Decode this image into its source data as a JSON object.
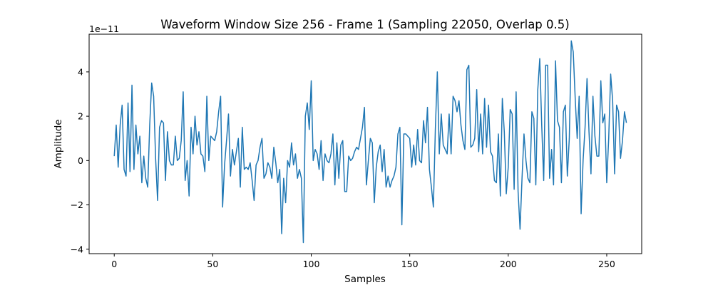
{
  "chart_data": {
    "type": "line",
    "title": "Waveform Window Size 256 - Frame 1 (Sampling 22050, Overlap 0.5)",
    "xlabel": "Samples",
    "ylabel": "Amplitude",
    "y_offset_label": "1e−11",
    "xlim": [
      -12.75,
      267.75
    ],
    "ylim": [
      -4.2,
      5.7
    ],
    "x_ticks": [
      0,
      50,
      100,
      150,
      200,
      250
    ],
    "x_tick_labels": [
      "0",
      "50",
      "100",
      "150",
      "200",
      "250"
    ],
    "y_ticks": [
      -4,
      -2,
      0,
      2,
      4
    ],
    "y_tick_labels": [
      "−4",
      "−2",
      "0",
      "2",
      "4"
    ],
    "grid": false,
    "series": [
      {
        "color": "#1f77b4",
        "values": [
          0.2,
          1.6,
          -0.3,
          1.6,
          2.5,
          -0.4,
          -0.7,
          2.6,
          -0.5,
          3.4,
          -0.4,
          1.6,
          0.3,
          1.1,
          -1.0,
          0.2,
          -0.8,
          -1.2,
          1.6,
          3.5,
          2.9,
          0.1,
          -1.8,
          1.5,
          1.8,
          1.7,
          -0.9,
          1.3,
          0.0,
          -0.2,
          -0.2,
          1.1,
          0.0,
          0.1,
          0.9,
          3.1,
          -0.9,
          0.0,
          -1.6,
          1.5,
          0.3,
          2.0,
          0.7,
          1.3,
          0.3,
          0.2,
          -0.5,
          2.9,
          0.0,
          1.1,
          1.0,
          0.9,
          1.3,
          2.2,
          2.9,
          -2.1,
          -0.2,
          0.9,
          2.1,
          -0.7,
          0.5,
          -0.2,
          0.4,
          1.0,
          -1.2,
          1.5,
          -0.4,
          -0.3,
          -0.4,
          -0.1,
          -0.9,
          -1.8,
          -0.2,
          0.0,
          0.6,
          1.0,
          -0.8,
          -0.6,
          -0.1,
          -0.3,
          -0.8,
          0.6,
          -0.1,
          -1.0,
          -0.4,
          -3.3,
          -0.8,
          -1.9,
          0.0,
          -0.3,
          0.8,
          -0.2,
          0.3,
          -0.8,
          -0.4,
          -0.8,
          -3.7,
          2.0,
          2.6,
          1.4,
          3.6,
          0.0,
          0.5,
          0.3,
          -0.4,
          0.9,
          -0.9,
          0.3,
          0.0,
          -0.1,
          0.3,
          1.2,
          -1.1,
          0.8,
          -0.8,
          0.7,
          0.9,
          -1.4,
          -1.4,
          0.2,
          0.0,
          0.1,
          0.4,
          0.6,
          0.5,
          1.0,
          1.5,
          2.4,
          -1.1,
          0.0,
          1.0,
          0.8,
          -1.9,
          -0.3,
          0.4,
          0.7,
          -0.5,
          0.5,
          -1.2,
          -0.7,
          -1.2,
          -0.9,
          -0.7,
          -0.3,
          1.2,
          1.5,
          -2.9,
          1.2,
          1.2,
          1.1,
          1.0,
          -0.3,
          0.7,
          -0.2,
          1.4,
          0.0,
          -0.1,
          1.8,
          0.8,
          2.4,
          -0.4,
          -1.2,
          -2.1,
          1.4,
          4.0,
          0.3,
          2.1,
          0.7,
          0.5,
          0.3,
          2.1,
          0.3,
          2.9,
          2.7,
          2.2,
          2.7,
          1.6,
          0.9,
          0.5,
          4.1,
          4.3,
          0.6,
          0.7,
          1.0,
          3.2,
          0.4,
          2.1,
          0.3,
          2.8,
          0.6,
          2.5,
          0.4,
          0.2,
          -0.9,
          -1.0,
          1.2,
          -1.6,
          2.8,
          1.3,
          -1.5,
          -0.3,
          2.3,
          2.1,
          -1.3,
          3.1,
          -1.4,
          -3.1,
          -0.8,
          1.2,
          0.0,
          -0.8,
          -1.0,
          2.2,
          1.9,
          -1.1,
          3.2,
          4.6,
          1.6,
          -0.9,
          4.3,
          4.3,
          -0.8,
          0.5,
          -1.1,
          4.5,
          1.8,
          1.5,
          -1.0,
          2.2,
          2.5,
          -0.7,
          1.0,
          5.4,
          4.9,
          2.8,
          1.0,
          2.9,
          -2.4,
          0.0,
          1.5,
          3.7,
          1.3,
          -0.6,
          2.9,
          1.1,
          0.2,
          0.2,
          3.6,
          1.7,
          2.1,
          -1.0,
          1.0,
          3.9,
          2.7,
          -0.6,
          2.5,
          2.2,
          0.1,
          0.9,
          2.2,
          1.7
        ]
      }
    ]
  }
}
